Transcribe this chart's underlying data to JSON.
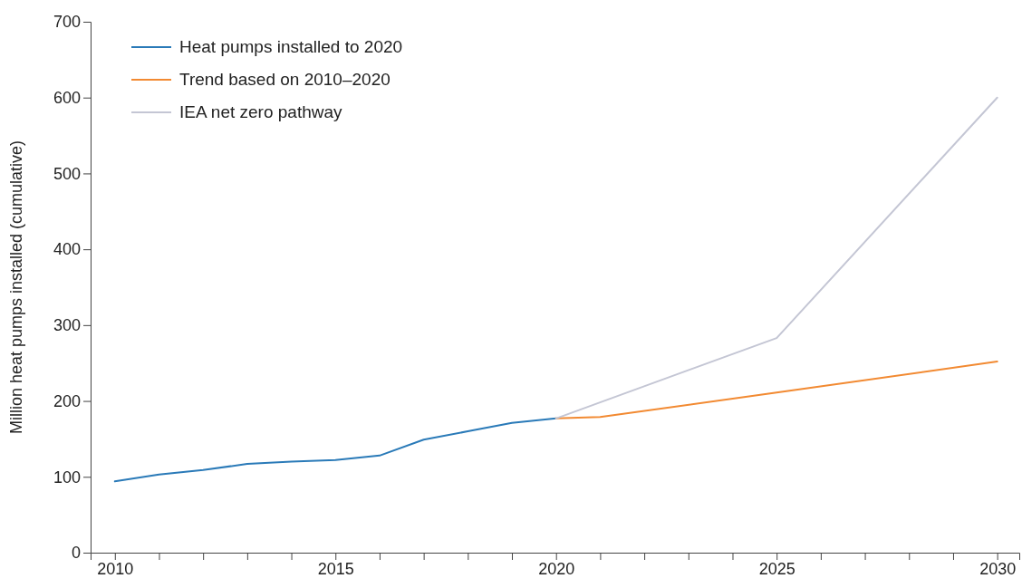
{
  "chart_data": {
    "type": "line",
    "ylabel": "Million heat pumps installed (cumulative)",
    "xlim": [
      2009.45,
      2030.5
    ],
    "ylim": [
      0,
      700
    ],
    "xticks": [
      2010,
      {
        "value": 2011,
        "label": null
      },
      {
        "value": 2012,
        "label": null
      },
      {
        "value": 2013,
        "label": null
      },
      {
        "value": 2014,
        "label": null
      },
      2015,
      {
        "value": 2016,
        "label": null
      },
      {
        "value": 2017,
        "label": null
      },
      {
        "value": 2018,
        "label": null
      },
      {
        "value": 2019,
        "label": null
      },
      2020,
      {
        "value": 2021,
        "label": null
      },
      {
        "value": 2022,
        "label": null
      },
      {
        "value": 2023,
        "label": null
      },
      {
        "value": 2024,
        "label": null
      },
      2025,
      {
        "value": 2026,
        "label": null
      },
      {
        "value": 2027,
        "label": null
      },
      {
        "value": 2028,
        "label": null
      },
      {
        "value": 2029,
        "label": null
      },
      2030
    ],
    "yticks": [
      0,
      100,
      200,
      300,
      400,
      500,
      600,
      700
    ],
    "grid": false,
    "legend": "top left",
    "marker": "none",
    "line_style": "solid",
    "series": [
      {
        "name": "Heat pumps installed to 2020",
        "color": "#2a7ab8",
        "x": [
          2010,
          2011,
          2012,
          2013,
          2014,
          2015,
          2016,
          2017,
          2018,
          2019,
          2020
        ],
        "values": [
          94,
          103,
          109,
          117,
          120,
          122,
          128,
          149,
          160,
          171,
          177
        ]
      },
      {
        "name": "Trend based on 2010–2020",
        "color": "#f28a32",
        "x": [
          2020,
          2021,
          2025,
          2030
        ],
        "values": [
          177,
          179,
          211,
          252
        ]
      },
      {
        "name": "IEA net zero pathway",
        "color": "#c4c6d4",
        "x": [
          2020,
          2025,
          2030
        ],
        "values": [
          177,
          283,
          600
        ]
      }
    ]
  }
}
